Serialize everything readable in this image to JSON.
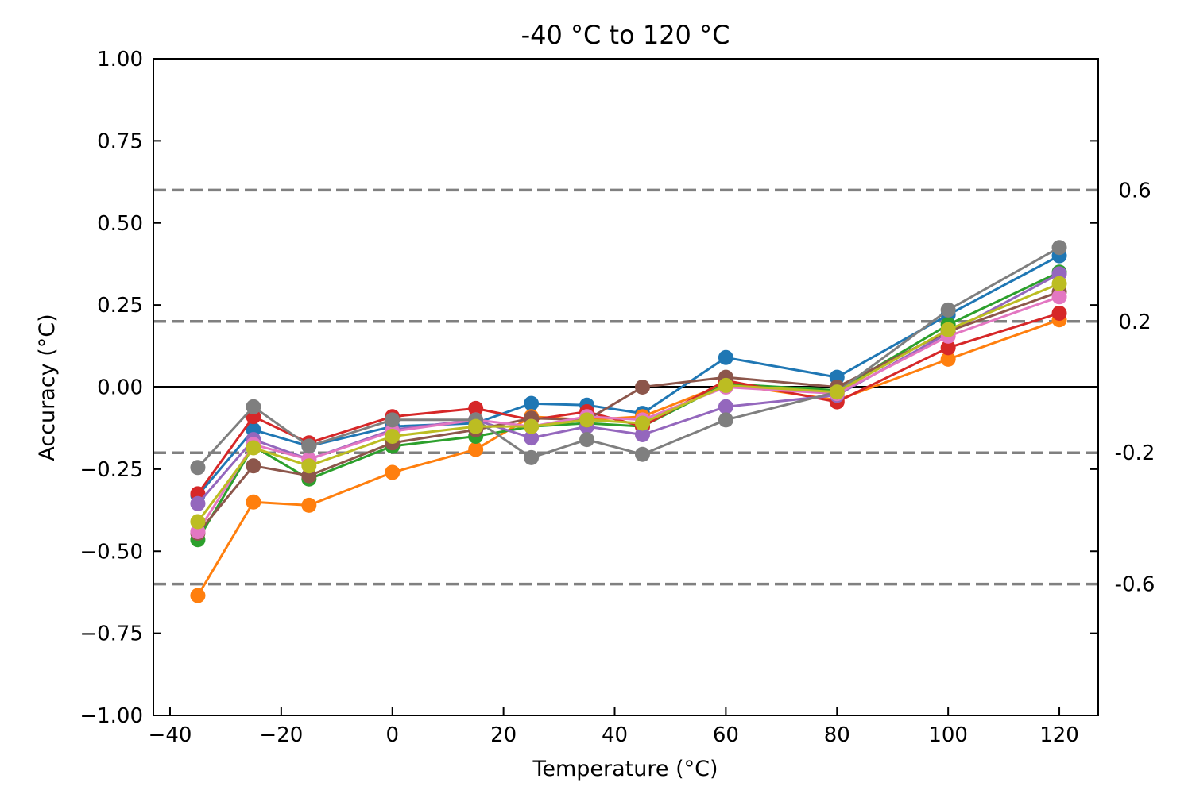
{
  "chart_data": {
    "type": "line",
    "title": "-40 °C to 120 °C",
    "xlabel": "Temperature (°C)",
    "ylabel": "Accuracy (°C)",
    "xlim": [
      -43,
      127
    ],
    "ylim": [
      -1.0,
      1.0
    ],
    "x_ticks": [
      -40,
      -20,
      0,
      20,
      40,
      60,
      80,
      100,
      120
    ],
    "x_tick_labels": [
      "−40",
      "−20",
      "0",
      "20",
      "40",
      "60",
      "80",
      "100",
      "120"
    ],
    "y_ticks": [
      -1.0,
      -0.75,
      -0.5,
      -0.25,
      0.0,
      0.25,
      0.5,
      0.75,
      1.0
    ],
    "y_tick_labels": [
      "−1.00",
      "−0.75",
      "−0.50",
      "−0.25",
      "0.00",
      "0.25",
      "0.50",
      "0.75",
      "1.00"
    ],
    "grid": false,
    "zero_line": {
      "y": 0.0,
      "color": "#000000"
    },
    "reference_lines": [
      {
        "y": 0.6,
        "label": "0.6"
      },
      {
        "y": 0.2,
        "label": "0.2"
      },
      {
        "y": -0.2,
        "label": "-0.2"
      },
      {
        "y": -0.6,
        "label": "-0.6"
      }
    ],
    "reference_color": "#808080",
    "x": [
      -35,
      -25,
      -15,
      0,
      15,
      25,
      35,
      45,
      60,
      80,
      100,
      120
    ],
    "series": [
      {
        "color": "#1f77b4",
        "values": [
          -0.33,
          -0.13,
          -0.18,
          -0.12,
          -0.11,
          -0.05,
          -0.055,
          -0.08,
          0.09,
          0.03,
          0.22,
          0.4
        ]
      },
      {
        "color": "#ff7f0e",
        "values": [
          -0.635,
          -0.35,
          -0.36,
          -0.26,
          -0.19,
          -0.09,
          -0.1,
          -0.09,
          0.01,
          -0.04,
          0.085,
          0.205
        ]
      },
      {
        "color": "#2ca02c",
        "values": [
          -0.465,
          -0.18,
          -0.28,
          -0.18,
          -0.15,
          -0.12,
          -0.11,
          -0.12,
          0.01,
          -0.01,
          0.19,
          0.35
        ]
      },
      {
        "color": "#d62728",
        "values": [
          -0.325,
          -0.09,
          -0.17,
          -0.09,
          -0.065,
          -0.1,
          -0.075,
          -0.12,
          0.02,
          -0.045,
          0.12,
          0.225
        ]
      },
      {
        "color": "#9467bd",
        "values": [
          -0.355,
          -0.16,
          -0.22,
          -0.13,
          -0.1,
          -0.155,
          -0.12,
          -0.145,
          -0.06,
          -0.025,
          0.165,
          0.345
        ]
      },
      {
        "color": "#8c564b",
        "values": [
          -0.445,
          -0.24,
          -0.27,
          -0.17,
          -0.13,
          -0.095,
          -0.1,
          0.0,
          0.03,
          0.0,
          0.17,
          0.29
        ]
      },
      {
        "color": "#e377c2",
        "values": [
          -0.44,
          -0.175,
          -0.22,
          -0.135,
          -0.1,
          -0.12,
          -0.09,
          -0.1,
          0.0,
          -0.02,
          0.155,
          0.275
        ]
      },
      {
        "color": "#7f7f7f",
        "values": [
          -0.245,
          -0.06,
          -0.18,
          -0.1,
          -0.1,
          -0.215,
          -0.16,
          -0.205,
          -0.1,
          -0.015,
          0.235,
          0.425
        ]
      },
      {
        "color": "#bcbd22",
        "values": [
          -0.41,
          -0.185,
          -0.24,
          -0.15,
          -0.12,
          -0.12,
          -0.1,
          -0.11,
          0.005,
          -0.015,
          0.175,
          0.315
        ]
      }
    ]
  }
}
